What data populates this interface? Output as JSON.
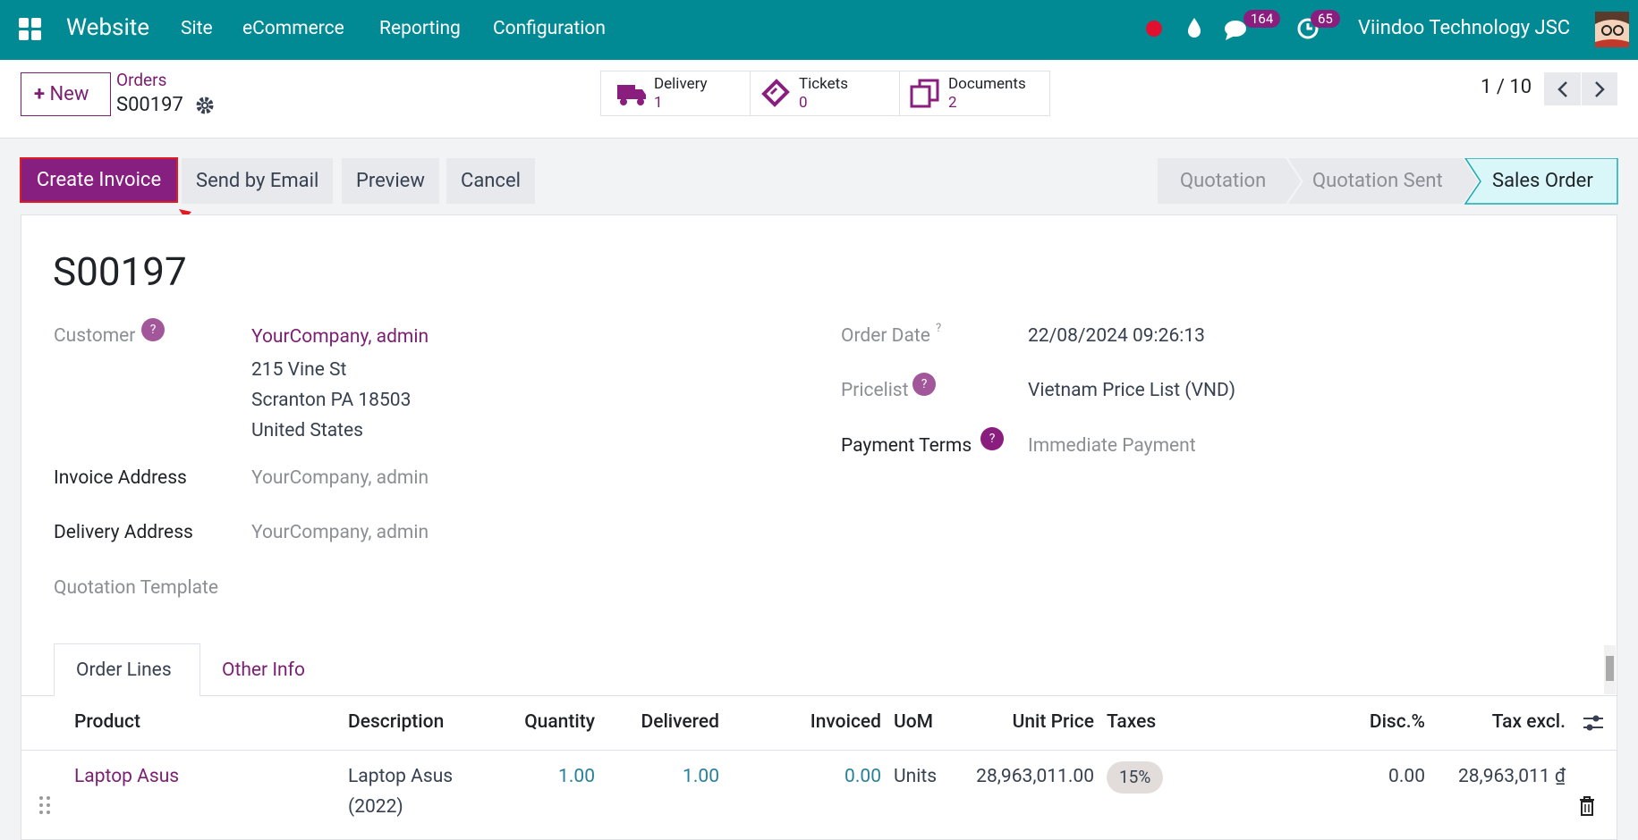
{
  "navbar": {
    "app": "Website",
    "menu": [
      "Site",
      "eCommerce",
      "Reporting",
      "Configuration"
    ],
    "message_count": "164",
    "activity_count": "65",
    "company": "Viindoo Technology JSC"
  },
  "control_panel": {
    "new": "New",
    "breadcrumb": "Orders",
    "record": "S00197",
    "smart_buttons": [
      {
        "label": "Delivery",
        "count": "1"
      },
      {
        "label": "Tickets",
        "count": "0"
      },
      {
        "label": "Documents",
        "count": "2"
      }
    ],
    "pager": "1 / 10"
  },
  "actions": [
    "Create Invoice",
    "Send by Email",
    "Preview",
    "Cancel"
  ],
  "stages": [
    "Quotation",
    "Quotation Sent",
    "Sales Order"
  ],
  "form": {
    "title": "S00197",
    "help": "?",
    "customer": {
      "label": "Customer",
      "name": "YourCompany, admin",
      "address": [
        "215 Vine St",
        "Scranton PA 18503",
        "United States"
      ]
    },
    "invoice_address": {
      "label": "Invoice Address",
      "value": "YourCompany, admin"
    },
    "delivery_address": {
      "label": "Delivery Address",
      "value": "YourCompany, admin"
    },
    "quotation_template": {
      "label": "Quotation Template"
    },
    "order_date": {
      "label": "Order Date",
      "value": "22/08/2024 09:26:13"
    },
    "pricelist": {
      "label": "Pricelist",
      "value": "Vietnam Price List (VND)"
    },
    "payment_terms": {
      "label": "Payment Terms",
      "value": "Immediate Payment"
    }
  },
  "tabs": [
    "Order Lines",
    "Other Info"
  ],
  "table": {
    "headers": [
      "Product",
      "Description",
      "Quantity",
      "Delivered",
      "Invoiced",
      "UoM",
      "Unit Price",
      "Taxes",
      "Disc.%",
      "Tax excl."
    ],
    "rows": [
      [
        "Laptop Asus",
        "Laptop Asus (2022)",
        "1.00",
        "1.00",
        "0.00",
        "Units",
        "28,963,011.00",
        "15%",
        "0.00",
        "28,963,011 ₫"
      ]
    ]
  }
}
